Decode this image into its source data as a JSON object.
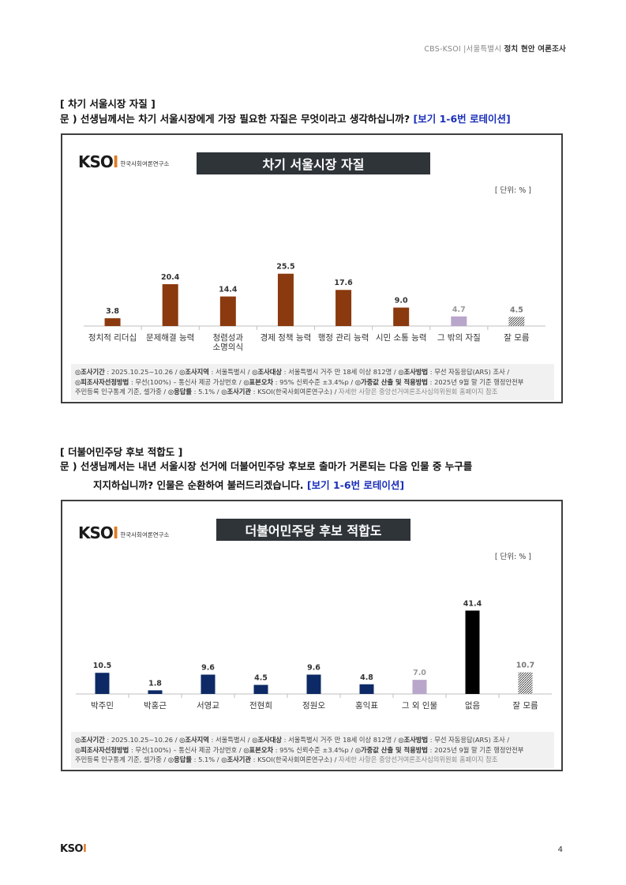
{
  "header": {
    "prefix": "CBS-KSOI |서울특별시 ",
    "title": "정치 현안 여론조사"
  },
  "sections": [
    {
      "title": "[ 차기 서울시장 자질 ]",
      "question_lines": [
        "문 )  선생님께서는 차기 서울시장에게 가장 필요한 자질은 무엇이라고 생각하십니까?"
      ],
      "rotation_note": "[보기 1-6번 로테이션]"
    },
    {
      "title": "[ 더불어민주당 후보 적합도 ]",
      "question_lines": [
        "문 )  선생님께서는 내년 서울시장 선거에 더불어민주당 후보로 출마가 거론되는 다음 인물 중 누구를",
        "지지하십니까? 인물은 순환하여 불러드리겠습니다."
      ],
      "rotation_note": "[보기 1-6번 로테이션]"
    }
  ],
  "logo": {
    "text_main": "KSO",
    "text_accent": "I",
    "sub": "한국사회여론연구소"
  },
  "unit_label": "[ 단위: % ]",
  "footnote": {
    "line1_parts": [
      {
        "b": "◎조사기간",
        "t": " : 2025.10.25~10.26 / "
      },
      {
        "b": "◎조사지역",
        "t": " : 서울특별시 / "
      },
      {
        "b": "◎조사대상",
        "t": " : 서울특별시 거주 만 18세 이상 812명 / "
      },
      {
        "b": "◎조사방법",
        "t": " : 무선 자동응답(ARS) 조사 /"
      }
    ],
    "line2_parts": [
      {
        "b": "◎피조사자선정방법",
        "t": " : 무선(100%) – 통신사 제공 가상번호 / "
      },
      {
        "b": "◎표본오차",
        "t": " : 95% 신뢰수준 ±3.4%p / "
      },
      {
        "b": "◎가중값 산출 및 적용방법",
        "t": " : 2025년 9월 말 기준 행정안전부"
      }
    ],
    "line3_parts": [
      {
        "b": "",
        "t": "주민등록 인구통계 기준, 셀가중 / "
      },
      {
        "b": "◎응답률",
        "t": " : 5.1% / "
      },
      {
        "b": "◎조사기관",
        "t": " : KSOI(한국사회여론연구소) / "
      }
    ],
    "line3_gray": "자세한 사항은 중앙선거여론조사심의위원회 홈페이지 참조"
  },
  "chart_data": [
    {
      "type": "bar",
      "title": "차기 서울시장 자질",
      "unit": "%",
      "categories": [
        "정치적 리더십",
        "문제해결 능력",
        "청렴성과\n소명의식",
        "경제 정책 능력",
        "행정 관리 능력",
        "시민 소통 능력",
        "그 밖의 자질",
        "잘 모름"
      ],
      "values": [
        3.8,
        20.4,
        14.4,
        25.5,
        17.6,
        9.0,
        4.7,
        4.5
      ],
      "value_labels": [
        "3.8",
        "20.4",
        "14.4",
        "25.5",
        "17.6",
        "9.0",
        "4.7",
        "4.5"
      ],
      "colors": [
        "#8a3a0e",
        "#8a3a0e",
        "#8a3a0e",
        "#8a3a0e",
        "#8a3a0e",
        "#8a3a0e",
        "#b9a6cb",
        "hatch"
      ],
      "label_colors": [
        "#333",
        "#333",
        "#333",
        "#333",
        "#333",
        "#333",
        "#999",
        "#777"
      ]
    },
    {
      "type": "bar",
      "title": "더불어민주당 후보 적합도",
      "unit": "%",
      "categories": [
        "박주민",
        "박홍근",
        "서영교",
        "전현희",
        "정원오",
        "홍익표",
        "그 외 인물",
        "없음",
        "잘 모름"
      ],
      "values": [
        10.5,
        1.8,
        9.6,
        4.5,
        9.6,
        4.8,
        7.0,
        41.4,
        10.7
      ],
      "value_labels": [
        "10.5",
        "1.8",
        "9.6",
        "4.5",
        "9.6",
        "4.8",
        "7.0",
        "41.4",
        "10.7"
      ],
      "colors": [
        "#0d2a66",
        "#0d2a66",
        "#0d2a66",
        "#0d2a66",
        "#0d2a66",
        "#0d2a66",
        "#b9a6cb",
        "#000000",
        "hatch"
      ],
      "label_colors": [
        "#333",
        "#333",
        "#333",
        "#333",
        "#333",
        "#333",
        "#999",
        "#333",
        "#777"
      ]
    }
  ],
  "page_number": "4"
}
